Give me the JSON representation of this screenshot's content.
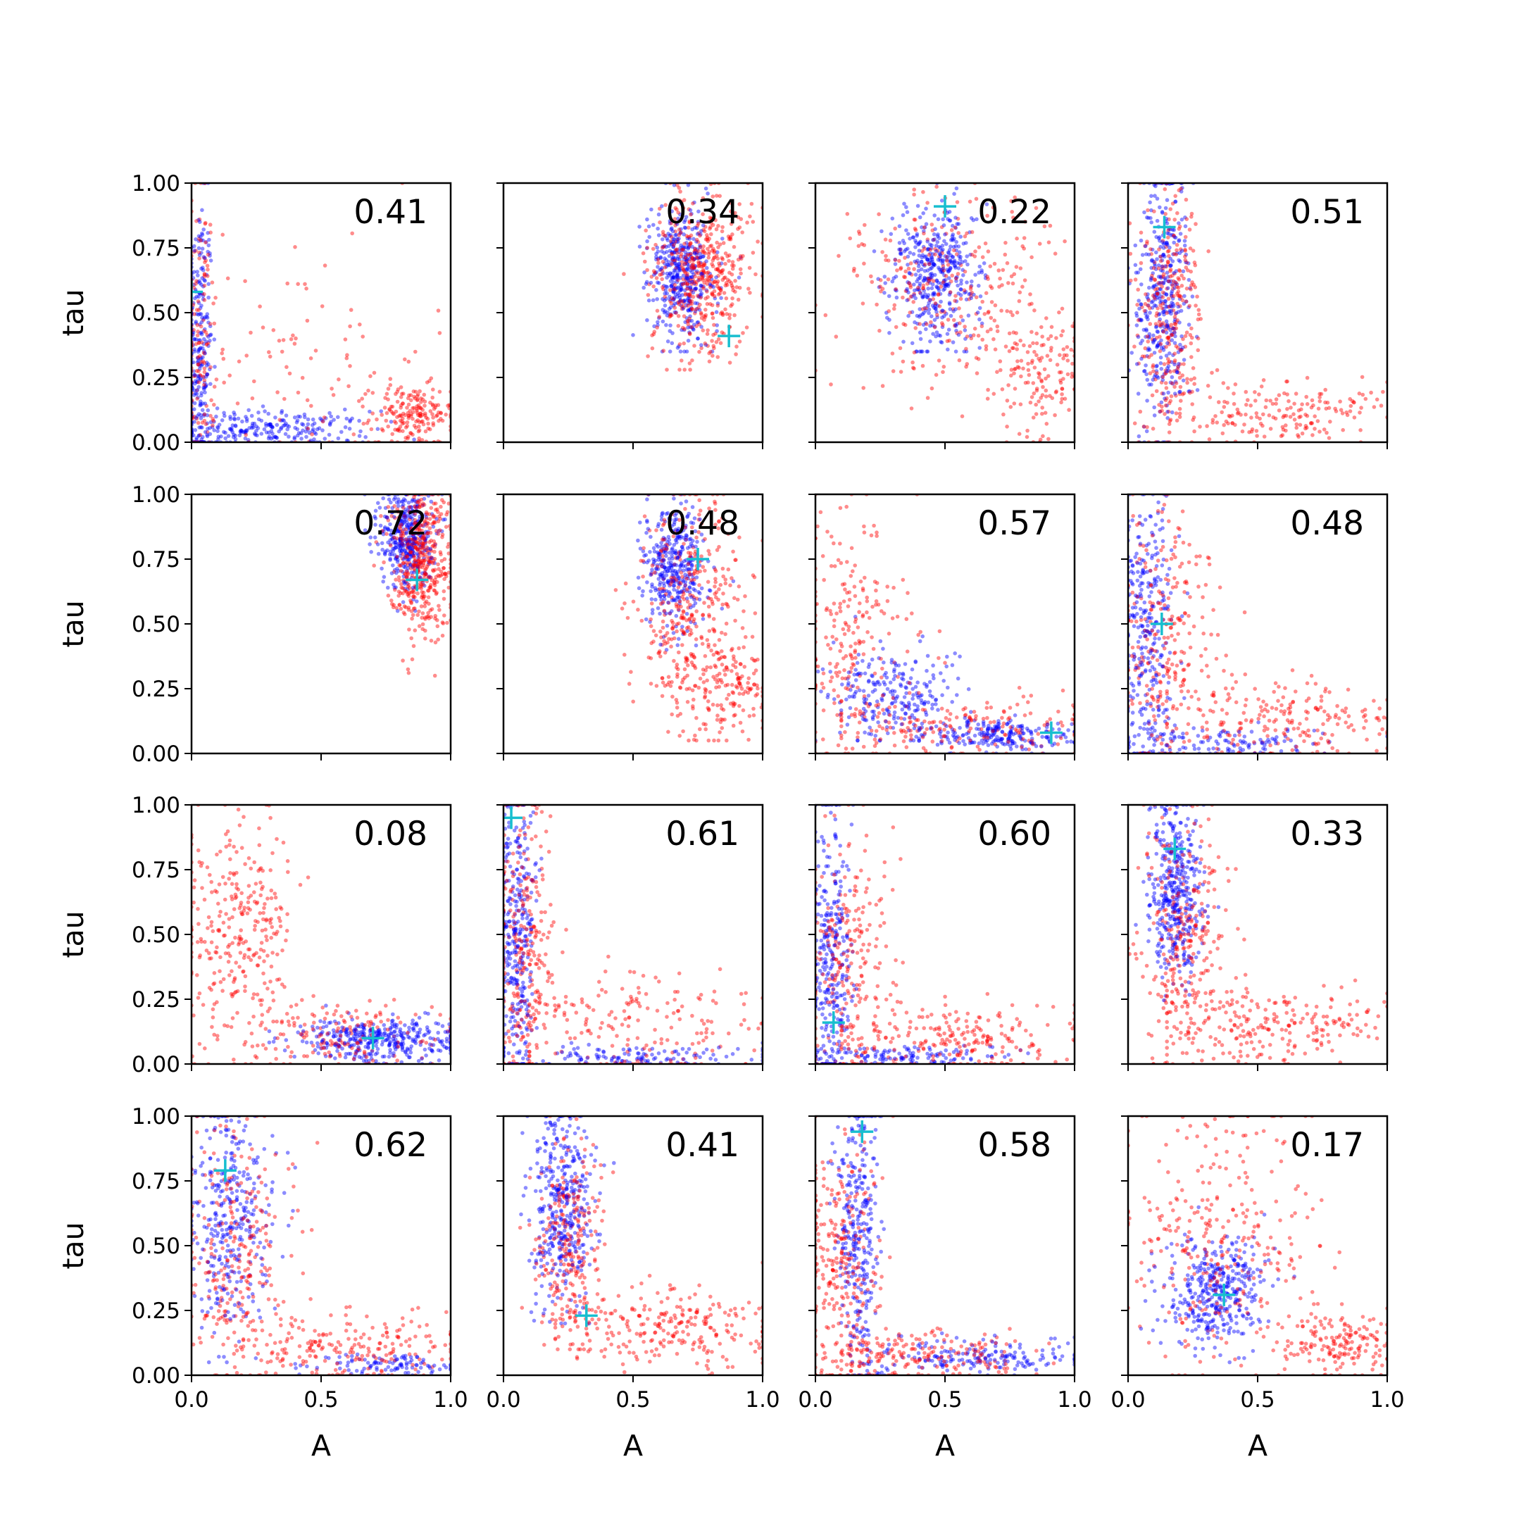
{
  "chart_data": {
    "type": "scatter",
    "grid": false,
    "layout": "4x4 grid of scatter panels",
    "xlabel": "A",
    "ylabel": "tau",
    "xlim": [
      0,
      1
    ],
    "ylim": [
      0,
      1
    ],
    "xticks": [
      "0.0",
      "0.5",
      "1.0"
    ],
    "yticks": [
      "0.00",
      "0.25",
      "0.50",
      "0.75",
      "1.00"
    ],
    "colors": {
      "posterior": "#ff0000",
      "prior": "#0000ff",
      "truth_marker": "#17becf"
    },
    "panels": [
      {
        "annotation": "0.41",
        "marker": [
          0.0,
          0.58
        ],
        "blue": [
          {
            "x": 0.03,
            "y": 0.35,
            "sx": 0.025,
            "sy": 0.3,
            "n": 260,
            "x_range": [
              0.0,
              0.12
            ],
            "y_range": [
              0.0,
              1.0
            ]
          },
          {
            "x": 0.3,
            "y": 0.05,
            "sx": 0.2,
            "sy": 0.035,
            "n": 240,
            "x_range": [
              0.0,
              0.95
            ],
            "y_range": [
              0.0,
              0.2
            ]
          }
        ],
        "red": [
          {
            "x": 0.03,
            "y": 0.4,
            "sx": 0.03,
            "sy": 0.3,
            "n": 140,
            "x_range": [
              0.0,
              0.15
            ],
            "y_range": [
              0.0,
              1.0
            ]
          },
          {
            "x": 0.85,
            "y": 0.1,
            "sx": 0.08,
            "sy": 0.06,
            "n": 190,
            "x_range": [
              0.5,
              1.0
            ],
            "y_range": [
              0.0,
              0.35
            ]
          },
          {
            "x": 0.4,
            "y": 0.35,
            "sx": 0.25,
            "sy": 0.25,
            "n": 90,
            "x_range": [
              0.05,
              1.0
            ],
            "y_range": [
              0.0,
              1.0
            ]
          }
        ]
      },
      {
        "annotation": "0.34",
        "marker": [
          0.87,
          0.41
        ],
        "blue": [
          {
            "x": 0.68,
            "y": 0.65,
            "sx": 0.06,
            "sy": 0.13,
            "n": 420,
            "x_range": [
              0.5,
              1.0
            ],
            "y_range": [
              0.35,
              1.0
            ]
          }
        ],
        "red": [
          {
            "x": 0.76,
            "y": 0.65,
            "sx": 0.1,
            "sy": 0.15,
            "n": 480,
            "x_range": [
              0.42,
              1.0
            ],
            "y_range": [
              0.28,
              1.0
            ]
          }
        ]
      },
      {
        "annotation": "0.22",
        "marker": [
          0.5,
          0.91
        ],
        "blue": [
          {
            "x": 0.47,
            "y": 0.64,
            "sx": 0.08,
            "sy": 0.14,
            "n": 420,
            "x_range": [
              0.2,
              0.8
            ],
            "y_range": [
              0.35,
              1.0
            ]
          }
        ],
        "red": [
          {
            "x": 0.5,
            "y": 0.6,
            "sx": 0.2,
            "sy": 0.18,
            "n": 280,
            "x_range": [
              0.0,
              1.0
            ],
            "y_range": [
              0.1,
              1.0
            ]
          },
          {
            "x": 0.85,
            "y": 0.3,
            "sx": 0.1,
            "sy": 0.12,
            "n": 160,
            "x_range": [
              0.5,
              1.0
            ],
            "y_range": [
              0.0,
              0.6
            ]
          }
        ]
      },
      {
        "annotation": "0.51",
        "marker": [
          0.14,
          0.83
        ],
        "blue": [
          {
            "x": 0.13,
            "y": 0.55,
            "sx": 0.05,
            "sy": 0.25,
            "n": 380,
            "x_range": [
              0.0,
              0.35
            ],
            "y_range": [
              0.0,
              1.0
            ]
          }
        ],
        "red": [
          {
            "x": 0.16,
            "y": 0.5,
            "sx": 0.06,
            "sy": 0.25,
            "n": 300,
            "x_range": [
              0.0,
              0.4
            ],
            "y_range": [
              0.0,
              1.0
            ]
          },
          {
            "x": 0.6,
            "y": 0.12,
            "sx": 0.2,
            "sy": 0.06,
            "n": 180,
            "x_range": [
              0.2,
              1.0
            ],
            "y_range": [
              0.0,
              0.35
            ]
          }
        ]
      },
      {
        "annotation": "0.72",
        "marker": [
          0.87,
          0.67
        ],
        "blue": [
          {
            "x": 0.83,
            "y": 0.83,
            "sx": 0.05,
            "sy": 0.1,
            "n": 380,
            "x_range": [
              0.65,
              1.0
            ],
            "y_range": [
              0.55,
              1.0
            ]
          }
        ],
        "red": [
          {
            "x": 0.88,
            "y": 0.75,
            "sx": 0.06,
            "sy": 0.14,
            "n": 460,
            "x_range": [
              0.6,
              1.0
            ],
            "y_range": [
              0.3,
              1.0
            ]
          }
        ]
      },
      {
        "annotation": "0.48",
        "marker": [
          0.75,
          0.75
        ],
        "blue": [
          {
            "x": 0.66,
            "y": 0.73,
            "sx": 0.06,
            "sy": 0.12,
            "n": 360,
            "x_range": [
              0.45,
              0.95
            ],
            "y_range": [
              0.4,
              1.0
            ]
          }
        ],
        "red": [
          {
            "x": 0.72,
            "y": 0.55,
            "sx": 0.1,
            "sy": 0.22,
            "n": 380,
            "x_range": [
              0.35,
              1.0
            ],
            "y_range": [
              0.05,
              1.0
            ]
          },
          {
            "x": 0.9,
            "y": 0.25,
            "sx": 0.07,
            "sy": 0.09,
            "n": 120,
            "x_range": [
              0.7,
              1.0
            ],
            "y_range": [
              0.05,
              0.45
            ]
          }
        ]
      },
      {
        "annotation": "0.57",
        "marker": [
          0.91,
          0.08
        ],
        "blue": [
          {
            "x": 0.3,
            "y": 0.22,
            "sx": 0.12,
            "sy": 0.09,
            "n": 240,
            "x_range": [
              0.0,
              0.6
            ],
            "y_range": [
              0.05,
              0.55
            ]
          },
          {
            "x": 0.72,
            "y": 0.07,
            "sx": 0.15,
            "sy": 0.03,
            "n": 220,
            "x_range": [
              0.4,
              1.0
            ],
            "y_range": [
              0.0,
              0.18
            ]
          }
        ],
        "red": [
          {
            "x": 0.15,
            "y": 0.45,
            "sx": 0.12,
            "sy": 0.25,
            "n": 220,
            "x_range": [
              0.0,
              0.5
            ],
            "y_range": [
              0.0,
              1.0
            ]
          },
          {
            "x": 0.55,
            "y": 0.1,
            "sx": 0.25,
            "sy": 0.06,
            "n": 180,
            "x_range": [
              0.1,
              1.0
            ],
            "y_range": [
              0.0,
              0.35
            ]
          }
        ]
      },
      {
        "annotation": "0.48",
        "marker": [
          0.13,
          0.5
        ],
        "blue": [
          {
            "x": 0.07,
            "y": 0.5,
            "sx": 0.05,
            "sy": 0.28,
            "n": 300,
            "x_range": [
              0.0,
              0.25
            ],
            "y_range": [
              0.0,
              1.0
            ]
          },
          {
            "x": 0.4,
            "y": 0.04,
            "sx": 0.2,
            "sy": 0.03,
            "n": 120,
            "x_range": [
              0.0,
              1.0
            ],
            "y_range": [
              0.0,
              0.12
            ]
          }
        ],
        "red": [
          {
            "x": 0.15,
            "y": 0.45,
            "sx": 0.1,
            "sy": 0.25,
            "n": 260,
            "x_range": [
              0.0,
              0.45
            ],
            "y_range": [
              0.0,
              1.0
            ]
          },
          {
            "x": 0.6,
            "y": 0.12,
            "sx": 0.22,
            "sy": 0.08,
            "n": 200,
            "x_range": [
              0.15,
              1.0
            ],
            "y_range": [
              0.0,
              0.4
            ]
          }
        ]
      },
      {
        "annotation": "0.08",
        "marker": [
          0.7,
          0.1
        ],
        "blue": [
          {
            "x": 0.72,
            "y": 0.09,
            "sx": 0.16,
            "sy": 0.04,
            "n": 380,
            "x_range": [
              0.3,
              1.0
            ],
            "y_range": [
              0.0,
              0.25
            ]
          }
        ],
        "red": [
          {
            "x": 0.18,
            "y": 0.5,
            "sx": 0.1,
            "sy": 0.25,
            "n": 300,
            "x_range": [
              0.0,
              0.45
            ],
            "y_range": [
              0.0,
              1.0
            ]
          },
          {
            "x": 0.55,
            "y": 0.12,
            "sx": 0.2,
            "sy": 0.07,
            "n": 160,
            "x_range": [
              0.1,
              1.0
            ],
            "y_range": [
              0.0,
              0.35
            ]
          }
        ]
      },
      {
        "annotation": "0.61",
        "marker": [
          0.03,
          0.95
        ],
        "blue": [
          {
            "x": 0.05,
            "y": 0.5,
            "sx": 0.035,
            "sy": 0.3,
            "n": 320,
            "x_range": [
              0.0,
              0.2
            ],
            "y_range": [
              0.0,
              1.0
            ]
          },
          {
            "x": 0.5,
            "y": 0.03,
            "sx": 0.25,
            "sy": 0.02,
            "n": 120,
            "x_range": [
              0.0,
              1.0
            ],
            "y_range": [
              0.0,
              0.1
            ]
          }
        ],
        "red": [
          {
            "x": 0.08,
            "y": 0.45,
            "sx": 0.06,
            "sy": 0.28,
            "n": 260,
            "x_range": [
              0.0,
              0.3
            ],
            "y_range": [
              0.0,
              1.0
            ]
          },
          {
            "x": 0.5,
            "y": 0.15,
            "sx": 0.25,
            "sy": 0.12,
            "n": 200,
            "x_range": [
              0.1,
              1.0
            ],
            "y_range": [
              0.0,
              0.5
            ]
          }
        ]
      },
      {
        "annotation": "0.60",
        "marker": [
          0.07,
          0.16
        ],
        "blue": [
          {
            "x": 0.06,
            "y": 0.45,
            "sx": 0.04,
            "sy": 0.28,
            "n": 300,
            "x_range": [
              0.0,
              0.22
            ],
            "y_range": [
              0.0,
              1.0
            ]
          },
          {
            "x": 0.35,
            "y": 0.03,
            "sx": 0.2,
            "sy": 0.02,
            "n": 120,
            "x_range": [
              0.0,
              1.0
            ],
            "y_range": [
              0.0,
              0.1
            ]
          }
        ],
        "red": [
          {
            "x": 0.12,
            "y": 0.4,
            "sx": 0.08,
            "sy": 0.25,
            "n": 240,
            "x_range": [
              0.0,
              0.4
            ],
            "y_range": [
              0.0,
              1.0
            ]
          },
          {
            "x": 0.55,
            "y": 0.1,
            "sx": 0.22,
            "sy": 0.07,
            "n": 220,
            "x_range": [
              0.1,
              1.0
            ],
            "y_range": [
              0.0,
              0.35
            ]
          }
        ]
      },
      {
        "annotation": "0.33",
        "marker": [
          0.18,
          0.83
        ],
        "blue": [
          {
            "x": 0.18,
            "y": 0.68,
            "sx": 0.05,
            "sy": 0.18,
            "n": 400,
            "x_range": [
              0.0,
              0.4
            ],
            "y_range": [
              0.2,
              1.0
            ]
          }
        ],
        "red": [
          {
            "x": 0.22,
            "y": 0.5,
            "sx": 0.08,
            "sy": 0.25,
            "n": 280,
            "x_range": [
              0.0,
              0.5
            ],
            "y_range": [
              0.0,
              1.0
            ]
          },
          {
            "x": 0.55,
            "y": 0.15,
            "sx": 0.2,
            "sy": 0.07,
            "n": 220,
            "x_range": [
              0.15,
              1.0
            ],
            "y_range": [
              0.0,
              0.4
            ]
          }
        ]
      },
      {
        "annotation": "0.62",
        "marker": [
          0.13,
          0.79
        ],
        "blue": [
          {
            "x": 0.15,
            "y": 0.6,
            "sx": 0.08,
            "sy": 0.22,
            "n": 330,
            "x_range": [
              0.0,
              0.4
            ],
            "y_range": [
              0.05,
              1.0
            ]
          },
          {
            "x": 0.75,
            "y": 0.04,
            "sx": 0.15,
            "sy": 0.02,
            "n": 100,
            "x_range": [
              0.4,
              1.0
            ],
            "y_range": [
              0.0,
              0.1
            ]
          }
        ],
        "red": [
          {
            "x": 0.18,
            "y": 0.45,
            "sx": 0.1,
            "sy": 0.26,
            "n": 260,
            "x_range": [
              0.0,
              0.5
            ],
            "y_range": [
              0.0,
              1.0
            ]
          },
          {
            "x": 0.6,
            "y": 0.1,
            "sx": 0.22,
            "sy": 0.07,
            "n": 200,
            "x_range": [
              0.2,
              1.0
            ],
            "y_range": [
              0.0,
              0.35
            ]
          }
        ]
      },
      {
        "annotation": "0.41",
        "marker": [
          0.32,
          0.23
        ],
        "blue": [
          {
            "x": 0.22,
            "y": 0.65,
            "sx": 0.06,
            "sy": 0.2,
            "n": 380,
            "x_range": [
              0.05,
              0.5
            ],
            "y_range": [
              0.2,
              1.0
            ]
          }
        ],
        "red": [
          {
            "x": 0.26,
            "y": 0.5,
            "sx": 0.07,
            "sy": 0.2,
            "n": 260,
            "x_range": [
              0.05,
              0.5
            ],
            "y_range": [
              0.1,
              1.0
            ]
          },
          {
            "x": 0.62,
            "y": 0.18,
            "sx": 0.2,
            "sy": 0.08,
            "n": 240,
            "x_range": [
              0.2,
              1.0
            ],
            "y_range": [
              0.0,
              0.45
            ]
          }
        ]
      },
      {
        "annotation": "0.58",
        "marker": [
          0.18,
          0.94
        ],
        "blue": [
          {
            "x": 0.16,
            "y": 0.55,
            "sx": 0.04,
            "sy": 0.28,
            "n": 300,
            "x_range": [
              0.0,
              0.35
            ],
            "y_range": [
              0.0,
              1.0
            ]
          },
          {
            "x": 0.6,
            "y": 0.07,
            "sx": 0.22,
            "sy": 0.04,
            "n": 180,
            "x_range": [
              0.2,
              1.0
            ],
            "y_range": [
              0.0,
              0.2
            ]
          }
        ],
        "red": [
          {
            "x": 0.1,
            "y": 0.4,
            "sx": 0.08,
            "sy": 0.25,
            "n": 280,
            "x_range": [
              0.0,
              0.35
            ],
            "y_range": [
              0.0,
              1.0
            ]
          },
          {
            "x": 0.45,
            "y": 0.08,
            "sx": 0.2,
            "sy": 0.05,
            "n": 180,
            "x_range": [
              0.1,
              1.0
            ],
            "y_range": [
              0.0,
              0.3
            ]
          }
        ]
      },
      {
        "annotation": "0.17",
        "marker": [
          0.37,
          0.31
        ],
        "blue": [
          {
            "x": 0.33,
            "y": 0.32,
            "sx": 0.1,
            "sy": 0.1,
            "n": 380,
            "x_range": [
              0.05,
              0.7
            ],
            "y_range": [
              0.05,
              0.65
            ]
          }
        ],
        "red": [
          {
            "x": 0.35,
            "y": 0.5,
            "sx": 0.2,
            "sy": 0.25,
            "n": 300,
            "x_range": [
              0.0,
              0.85
            ],
            "y_range": [
              0.0,
              1.0
            ]
          },
          {
            "x": 0.82,
            "y": 0.12,
            "sx": 0.1,
            "sy": 0.06,
            "n": 160,
            "x_range": [
              0.55,
              1.0
            ],
            "y_range": [
              0.0,
              0.3
            ]
          }
        ]
      }
    ]
  }
}
